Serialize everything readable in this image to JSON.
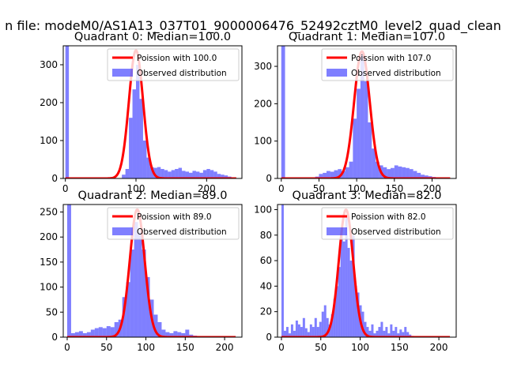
{
  "figure": {
    "suptitle": "n file: modeM0/AS1A13_037T01_9000006476_52492cztM0_level2_quad_clean"
  },
  "colors": {
    "histogram": "#0000ff",
    "histogram_opacity": 0.5,
    "poisson": "#ff0000",
    "background": "#ffffff"
  },
  "chart_data": [
    {
      "type": "bar",
      "title": "Quadrant 0: Median=100.0",
      "xticks": [
        0,
        100,
        200
      ],
      "yticks": [
        0,
        100,
        200,
        300
      ],
      "xlim": [
        -3,
        250
      ],
      "ylim": [
        0,
        350
      ],
      "legend_position": "upper right",
      "poisson_label": "Poission with 100.0",
      "histogram_label": "Observed distribution",
      "median": 100.0,
      "poisson_peak": 338,
      "bin_width": 5,
      "hist_x": [
        0,
        5,
        10,
        15,
        20,
        25,
        30,
        35,
        40,
        45,
        50,
        55,
        60,
        65,
        70,
        75,
        80,
        85,
        90,
        95,
        100,
        105,
        110,
        115,
        120,
        125,
        130,
        135,
        140,
        145,
        150,
        155,
        160,
        165,
        170,
        175,
        180,
        185,
        190,
        195,
        200,
        205,
        210,
        215,
        220,
        225,
        230,
        235
      ],
      "hist_y": [
        352,
        0,
        0,
        0,
        0,
        0,
        0,
        0,
        0,
        0,
        0,
        0,
        0,
        0,
        0,
        0,
        10,
        25,
        160,
        235,
        300,
        210,
        100,
        55,
        30,
        28,
        30,
        25,
        22,
        18,
        22,
        25,
        28,
        20,
        18,
        15,
        20,
        18,
        15,
        22,
        25,
        22,
        18,
        12,
        10,
        8,
        5,
        3
      ]
    },
    {
      "type": "bar",
      "title": "Quadrant 1: Median=107.0",
      "xticks": [
        0,
        50,
        100,
        150,
        200
      ],
      "yticks": [
        0,
        100,
        200,
        300
      ],
      "xlim": [
        -5,
        232
      ],
      "ylim": [
        0,
        355
      ],
      "legend_position": "upper right",
      "poisson_label": "Poission with 107.0",
      "histogram_label": "Observed distribution",
      "median": 107.0,
      "poisson_peak": 340,
      "bin_width": 5,
      "hist_x": [
        0,
        5,
        10,
        15,
        20,
        25,
        30,
        35,
        40,
        45,
        50,
        55,
        60,
        65,
        70,
        75,
        80,
        85,
        90,
        95,
        100,
        105,
        110,
        115,
        120,
        125,
        130,
        135,
        140,
        145,
        150,
        155,
        160,
        165,
        170,
        175,
        180,
        185,
        190,
        195,
        200,
        205,
        210,
        215,
        220
      ],
      "hist_y": [
        360,
        0,
        0,
        0,
        0,
        0,
        0,
        0,
        0,
        5,
        12,
        15,
        20,
        18,
        22,
        25,
        20,
        30,
        45,
        160,
        240,
        335,
        260,
        150,
        80,
        45,
        35,
        30,
        25,
        28,
        35,
        32,
        30,
        28,
        25,
        20,
        15,
        10,
        8,
        6,
        4,
        3,
        2,
        1,
        0
      ]
    },
    {
      "type": "bar",
      "title": "Quadrant 2: Median=89.0",
      "xticks": [
        0,
        50,
        100,
        150,
        200
      ],
      "yticks": [
        0,
        50,
        100,
        150,
        200,
        250
      ],
      "xlim": [
        -5,
        222
      ],
      "ylim": [
        0,
        265
      ],
      "legend_position": "upper right",
      "poisson_label": "Poission with 89.0",
      "histogram_label": "Observed distribution",
      "median": 89.0,
      "poisson_peak": 255,
      "bin_width": 5,
      "hist_x": [
        0,
        5,
        10,
        15,
        20,
        25,
        30,
        35,
        40,
        45,
        50,
        55,
        60,
        65,
        70,
        75,
        80,
        85,
        90,
        95,
        100,
        105,
        110,
        115,
        120,
        125,
        130,
        135,
        140,
        145,
        150,
        155,
        160,
        165,
        170,
        175,
        180,
        185,
        190,
        195,
        200,
        205,
        210
      ],
      "hist_y": [
        270,
        8,
        10,
        12,
        8,
        10,
        15,
        18,
        20,
        18,
        22,
        20,
        30,
        35,
        80,
        110,
        175,
        230,
        210,
        175,
        120,
        75,
        45,
        30,
        15,
        10,
        8,
        12,
        10,
        8,
        15,
        5,
        3,
        2,
        2,
        1,
        1,
        0,
        0,
        0,
        0,
        0,
        0
      ]
    },
    {
      "type": "bar",
      "title": "Quadrant 3: Median=82.0",
      "xticks": [
        0,
        50,
        100,
        150,
        200
      ],
      "yticks": [
        0,
        20,
        40,
        60,
        80,
        100
      ],
      "xlim": [
        -5,
        222
      ],
      "ylim": [
        0,
        104
      ],
      "legend_position": "upper right",
      "poisson_label": "Poission with 82.0",
      "histogram_label": "Observed distribution",
      "median": 82.0,
      "poisson_peak": 100,
      "bin_width": 3,
      "hist_x": [
        0,
        3,
        6,
        9,
        12,
        15,
        18,
        21,
        24,
        27,
        30,
        33,
        36,
        39,
        42,
        45,
        48,
        51,
        54,
        57,
        60,
        63,
        66,
        69,
        72,
        75,
        78,
        81,
        84,
        87,
        90,
        93,
        96,
        99,
        102,
        105,
        108,
        111,
        114,
        117,
        120,
        123,
        126,
        129,
        132,
        135,
        138,
        141,
        144,
        147,
        150,
        153,
        156,
        159,
        162,
        165,
        168
      ],
      "hist_y": [
        105,
        5,
        8,
        3,
        10,
        5,
        13,
        10,
        8,
        15,
        7,
        4,
        10,
        8,
        15,
        8,
        12,
        20,
        25,
        15,
        10,
        18,
        30,
        40,
        55,
        80,
        75,
        95,
        70,
        60,
        80,
        40,
        35,
        25,
        20,
        12,
        8,
        5,
        10,
        3,
        5,
        8,
        12,
        5,
        8,
        3,
        10,
        5,
        8,
        3,
        6,
        4,
        8,
        4,
        2,
        1,
        0
      ]
    }
  ]
}
